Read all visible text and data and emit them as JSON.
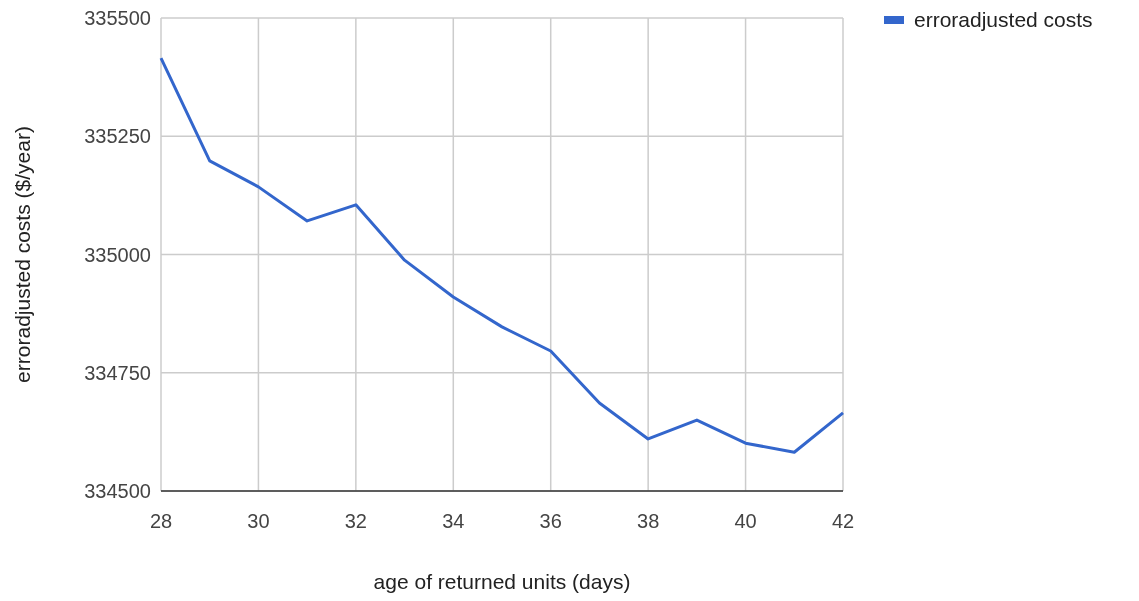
{
  "chart_data": {
    "type": "line",
    "xlabel": "age of returned units (days)",
    "ylabel": "erroradjusted costs ($/year)",
    "x": [
      28,
      29,
      30,
      31,
      32,
      33,
      34,
      35,
      36,
      37,
      38,
      39,
      40,
      41,
      42
    ],
    "series": [
      {
        "name": "erroradjusted costs",
        "color": "#3366cc",
        "values": [
          335415,
          335198,
          335143,
          335071,
          335105,
          334988,
          334910,
          334847,
          334796,
          334686,
          334610,
          334650,
          334601,
          334582,
          334665
        ]
      }
    ],
    "xlim": [
      28,
      42
    ],
    "xticks": [
      28,
      30,
      32,
      34,
      36,
      38,
      40,
      42
    ],
    "ylim": [
      334500,
      335500
    ],
    "yticks": [
      334500,
      334750,
      335000,
      335250,
      335500
    ],
    "grid": true,
    "legend": "top right",
    "marker": "none",
    "line_style": "solid"
  }
}
